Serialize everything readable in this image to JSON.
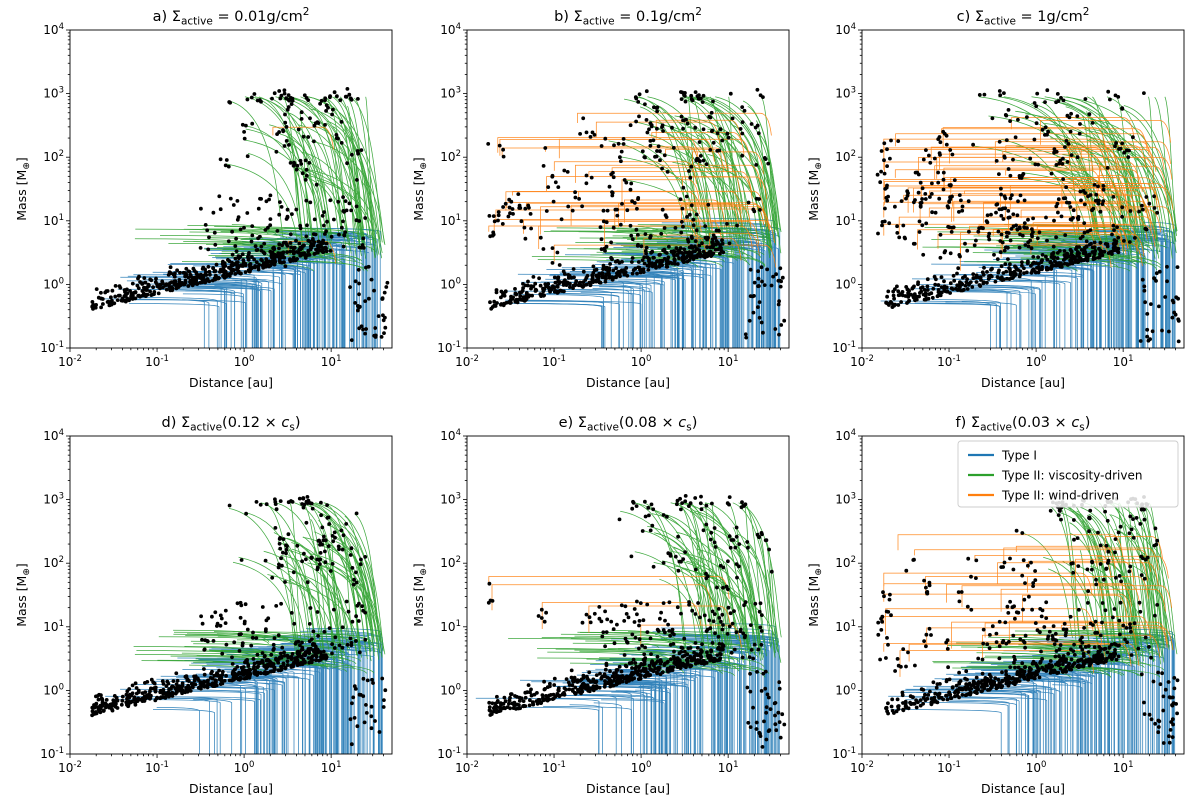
{
  "figure": {
    "rows": 2,
    "cols": 3,
    "colors": {
      "type1": "#1f77b4",
      "type2_viscosity": "#2ca02c",
      "type2_wind": "#ff7f0e",
      "points": "#000000"
    }
  },
  "chart_data": [
    {
      "type": "line",
      "panel_id": "a",
      "title_prefix": "a) ",
      "title_sigma": "Σ",
      "title_sub": "active",
      "title_suffix": " = 0.01g/cm",
      "title_sup": "2",
      "xlabel": "Distance [au]",
      "ylabel_main": "Mass [M",
      "ylabel_sub": "⊕",
      "ylabel_end": "]",
      "xscale": "log",
      "yscale": "log",
      "xlim": [
        0.01,
        50
      ],
      "ylim": [
        0.1,
        10000
      ],
      "x_ticks": [
        0.01,
        0.1,
        1,
        10
      ],
      "y_ticks": [
        0.1,
        1,
        10,
        100,
        1000,
        10000
      ],
      "legend": null,
      "wind_fraction": 0.02,
      "wind_maxlen": 0.6,
      "wind_top_mass": 800,
      "giant_spread": 0.5,
      "n_points": 720,
      "seed": 11
    },
    {
      "type": "line",
      "panel_id": "b",
      "title_prefix": "b) ",
      "title_sigma": "Σ",
      "title_sub": "active",
      "title_suffix": " = 0.1g/cm",
      "title_sup": "2",
      "xlabel": "Distance [au]",
      "ylabel_main": "Mass [M",
      "ylabel_sub": "⊕",
      "ylabel_end": "]",
      "xscale": "log",
      "yscale": "log",
      "xlim": [
        0.01,
        50
      ],
      "ylim": [
        0.1,
        10000
      ],
      "x_ticks": [
        0.01,
        0.1,
        1,
        10
      ],
      "y_ticks": [
        0.1,
        1,
        10,
        100,
        1000,
        10000
      ],
      "legend": null,
      "wind_fraction": 0.45,
      "wind_maxlen": 2.3,
      "wind_top_mass": 800,
      "giant_spread": 0.6,
      "n_points": 720,
      "seed": 23
    },
    {
      "type": "line",
      "panel_id": "c",
      "title_prefix": "c) ",
      "title_sigma": "Σ",
      "title_sub": "active",
      "title_suffix": " = 1g/cm",
      "title_sup": "2",
      "xlabel": "Distance [au]",
      "ylabel_main": "Mass [M",
      "ylabel_sub": "⊕",
      "ylabel_end": "]",
      "xscale": "log",
      "yscale": "log",
      "xlim": [
        0.01,
        50
      ],
      "ylim": [
        0.1,
        10000
      ],
      "x_ticks": [
        0.01,
        0.1,
        1,
        10
      ],
      "y_ticks": [
        0.1,
        1,
        10,
        100,
        1000,
        10000
      ],
      "legend": null,
      "wind_fraction": 0.75,
      "wind_maxlen": 2.7,
      "wind_top_mass": 600,
      "giant_spread": 0.8,
      "n_points": 760,
      "seed": 37
    },
    {
      "type": "line",
      "panel_id": "d",
      "title_prefix": "d) ",
      "title_sigma": "Σ",
      "title_sub": "active",
      "title_suffix": "(0.12 × ",
      "title_cs": "c",
      "title_cs_sub": "s",
      "title_end": ")",
      "xlabel": "Distance [au]",
      "ylabel_main": "Mass [M",
      "ylabel_sub": "⊕",
      "ylabel_end": "]",
      "xscale": "log",
      "yscale": "log",
      "xlim": [
        0.01,
        50
      ],
      "ylim": [
        0.1,
        10000
      ],
      "x_ticks": [
        0.01,
        0.1,
        1,
        10
      ],
      "y_ticks": [
        0.1,
        1,
        10,
        100,
        1000,
        10000
      ],
      "legend": null,
      "wind_fraction": 0.0,
      "wind_maxlen": 0.0,
      "wind_top_mass": 900,
      "giant_spread": 0.5,
      "n_points": 720,
      "seed": 41
    },
    {
      "type": "line",
      "panel_id": "e",
      "title_prefix": "e) ",
      "title_sigma": "Σ",
      "title_sub": "active",
      "title_suffix": "(0.08 × ",
      "title_cs": "c",
      "title_cs_sub": "s",
      "title_end": ")",
      "xlabel": "Distance [au]",
      "ylabel_main": "Mass [M",
      "ylabel_sub": "⊕",
      "ylabel_end": "]",
      "xscale": "log",
      "yscale": "log",
      "xlim": [
        0.01,
        50
      ],
      "ylim": [
        0.1,
        10000
      ],
      "x_ticks": [
        0.01,
        0.1,
        1,
        10
      ],
      "y_ticks": [
        0.1,
        1,
        10,
        100,
        1000,
        10000
      ],
      "legend": null,
      "wind_fraction": 0.06,
      "wind_maxlen": 2.5,
      "wind_top_mass": 750,
      "giant_spread": 0.5,
      "n_points": 720,
      "seed": 53
    },
    {
      "type": "line",
      "panel_id": "f",
      "title_prefix": "f) ",
      "title_sigma": "Σ",
      "title_sub": "active",
      "title_suffix": "(0.03 × ",
      "title_cs": "c",
      "title_cs_sub": "s",
      "title_end": ")",
      "xlabel": "Distance [au]",
      "ylabel_main": "Mass [M",
      "ylabel_sub": "⊕",
      "ylabel_end": "]",
      "xscale": "log",
      "yscale": "log",
      "xlim": [
        0.01,
        50
      ],
      "ylim": [
        0.1,
        10000
      ],
      "x_ticks": [
        0.01,
        0.1,
        1,
        10
      ],
      "y_ticks": [
        0.1,
        1,
        10,
        100,
        1000,
        10000
      ],
      "legend": {
        "placement": "upper right",
        "entries": [
          {
            "label": "Type I",
            "color": "#1f77b4"
          },
          {
            "label": "Type II: viscosity-driven",
            "color": "#2ca02c"
          },
          {
            "label": "Type II: wind-driven",
            "color": "#ff7f0e"
          }
        ]
      },
      "wind_fraction": 0.35,
      "wind_maxlen": 2.8,
      "wind_top_mass": 300,
      "giant_spread": 0.35,
      "n_points": 720,
      "seed": 67
    }
  ]
}
